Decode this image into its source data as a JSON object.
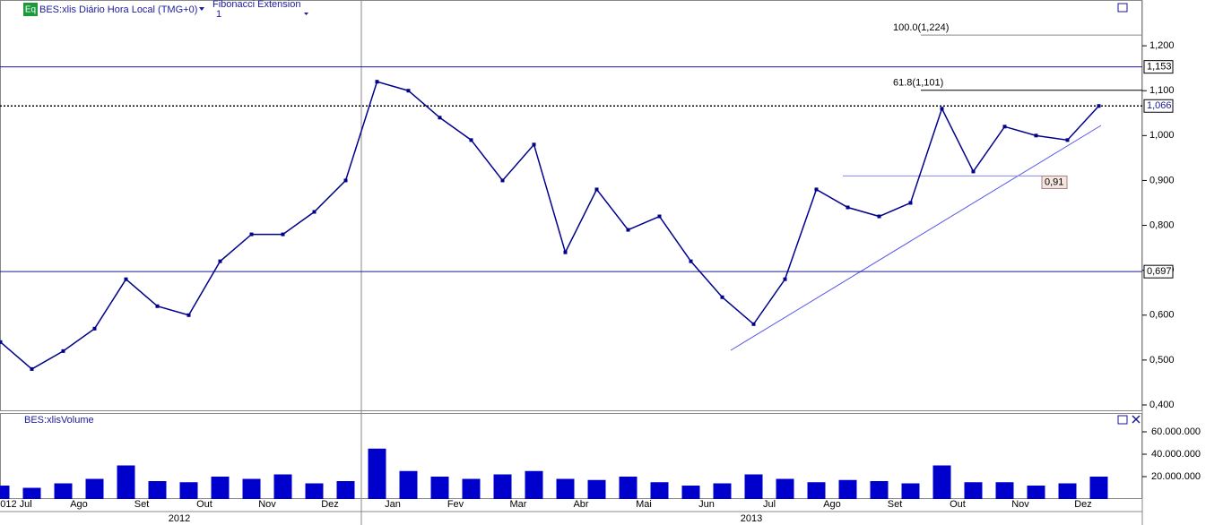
{
  "header": {
    "badge": "Eq",
    "study": "Fibonacci Extension",
    "study_param": "1"
  },
  "chart_data": [
    {
      "type": "line",
      "title": "BES:xlis Diário Hora Local (TMG+0)",
      "color": "#00008b",
      "categories": [
        "012 Jul",
        null,
        "Ago",
        null,
        "Set",
        null,
        "Out",
        null,
        "Nov",
        null,
        "Dez",
        null,
        "Jan",
        null,
        "Fev",
        null,
        "Mar",
        null,
        "Abr",
        null,
        "Mai",
        null,
        "Jun",
        null,
        "Jul",
        null,
        "Ago",
        null,
        "Set",
        null,
        "Out",
        null,
        "Nov",
        null,
        "Dez",
        null
      ],
      "x_groups": [
        "2012",
        "2013"
      ],
      "values": [
        0.54,
        0.48,
        0.52,
        0.57,
        0.68,
        0.62,
        0.6,
        0.72,
        0.78,
        0.78,
        0.83,
        0.9,
        1.12,
        1.1,
        1.04,
        0.99,
        0.9,
        0.98,
        0.74,
        0.88,
        0.79,
        0.82,
        0.72,
        0.64,
        0.58,
        0.68,
        0.88,
        0.84,
        0.82,
        0.85,
        1.06,
        0.92,
        1.02,
        1.0,
        0.99,
        1.066
      ],
      "ylim": [
        0.388,
        1.302
      ],
      "yticks": [
        {
          "value": 0.4,
          "label": "0,400"
        },
        {
          "value": 0.5,
          "label": "0,500"
        },
        {
          "value": 0.6,
          "label": "0,600"
        },
        {
          "value": 0.7,
          "label": "0,700"
        },
        {
          "value": 0.8,
          "label": "0,800"
        },
        {
          "value": 0.9,
          "label": "0,900"
        },
        {
          "value": 1.0,
          "label": "1,000"
        },
        {
          "value": 1.1,
          "label": "1,100"
        },
        {
          "value": 1.2,
          "label": "1,200"
        }
      ],
      "levels": [
        {
          "value": 1.153,
          "label": "1,153"
        },
        {
          "value": 1.066,
          "label": "1,066"
        },
        {
          "value": 0.697,
          "label": "0,697"
        }
      ],
      "annotations": [
        {
          "value": 1.224,
          "label": "100.0(1,224)"
        },
        {
          "value": 1.101,
          "label": "61.8(1,101)"
        },
        {
          "value": 0.91,
          "label": "0,91"
        }
      ]
    },
    {
      "type": "bar",
      "title": "BES:xlisVolume",
      "color": "#0000cc",
      "values": [
        12000000,
        10000000,
        14000000,
        18000000,
        30000000,
        16000000,
        15000000,
        20000000,
        18000000,
        22000000,
        14000000,
        16000000,
        45000000,
        25000000,
        20000000,
        18000000,
        22000000,
        25000000,
        18000000,
        17000000,
        20000000,
        15000000,
        12000000,
        14000000,
        22000000,
        18000000,
        15000000,
        17000000,
        16000000,
        14000000,
        30000000,
        15000000,
        15000000,
        12000000,
        14000000,
        20000000
      ],
      "ylim": [
        0,
        76000000
      ],
      "yticks": [
        {
          "value": 20000000,
          "label": "20.000.000"
        },
        {
          "value": 40000000,
          "label": "40.000.000"
        },
        {
          "value": 60000000,
          "label": "60.000.000"
        }
      ]
    }
  ]
}
